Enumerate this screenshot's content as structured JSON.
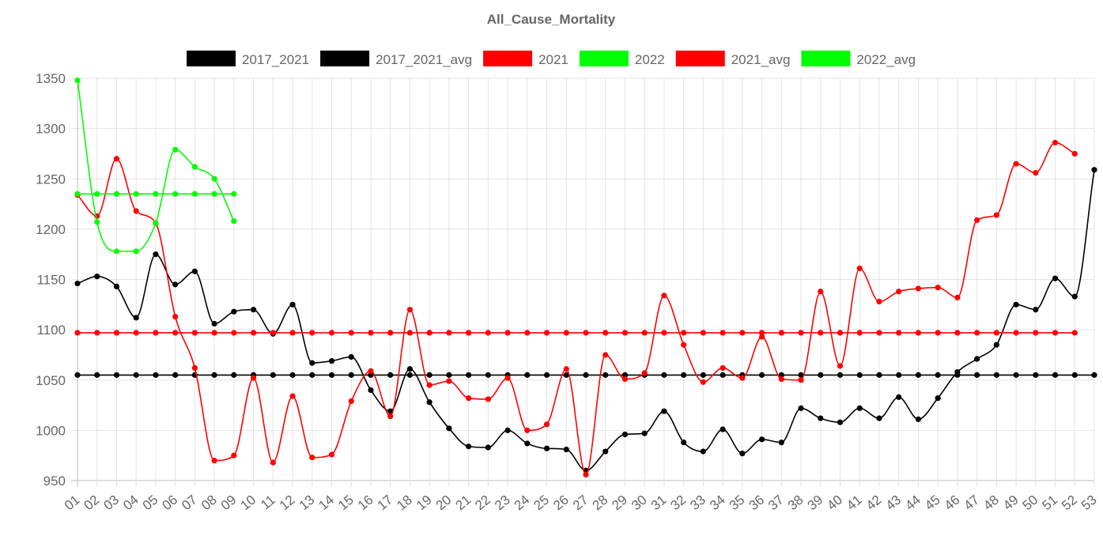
{
  "chart_data": {
    "type": "line",
    "title": "All_Cause_Mortality",
    "xlabel": "",
    "ylabel": "",
    "ylim": [
      950,
      1350
    ],
    "yticks": [
      950,
      1000,
      1050,
      1100,
      1150,
      1200,
      1250,
      1300,
      1350
    ],
    "categories": [
      "01",
      "02",
      "03",
      "04",
      "05",
      "06",
      "07",
      "08",
      "09",
      "10",
      "11",
      "12",
      "13",
      "14",
      "15",
      "16",
      "17",
      "18",
      "19",
      "20",
      "21",
      "22",
      "23",
      "24",
      "25",
      "26",
      "27",
      "28",
      "29",
      "30",
      "31",
      "32",
      "33",
      "34",
      "35",
      "36",
      "37",
      "38",
      "39",
      "40",
      "41",
      "42",
      "43",
      "44",
      "45",
      "46",
      "47",
      "48",
      "49",
      "50",
      "51",
      "52",
      "53"
    ],
    "grid": true,
    "legend_position": "top",
    "series": [
      {
        "name": "2017_2021",
        "color": "#000000",
        "values": [
          1146,
          1153,
          1143,
          1112,
          1175,
          1145,
          1158,
          1106,
          1118,
          1120,
          1096,
          1125,
          1067,
          1069,
          1073,
          1040,
          1019,
          1061,
          1028,
          1002,
          984,
          983,
          1000,
          987,
          982,
          981,
          960,
          979,
          996,
          997,
          1019,
          988,
          979,
          1001,
          977,
          991,
          988,
          1022,
          1012,
          1008,
          1022,
          1012,
          1033,
          1011,
          1032,
          1058,
          1071,
          1085,
          1125,
          1120,
          1151,
          1133,
          1259
        ]
      },
      {
        "name": "2017_2021_avg",
        "color": "#000000",
        "values": [
          1055,
          1055,
          1055,
          1055,
          1055,
          1055,
          1055,
          1055,
          1055,
          1055,
          1055,
          1055,
          1055,
          1055,
          1055,
          1055,
          1055,
          1055,
          1055,
          1055,
          1055,
          1055,
          1055,
          1055,
          1055,
          1055,
          1055,
          1055,
          1055,
          1055,
          1055,
          1055,
          1055,
          1055,
          1055,
          1055,
          1055,
          1055,
          1055,
          1055,
          1055,
          1055,
          1055,
          1055,
          1055,
          1055,
          1055,
          1055,
          1055,
          1055,
          1055,
          1055,
          1055
        ]
      },
      {
        "name": "2021",
        "color": "#ff0000",
        "values": [
          1234,
          1213,
          1270,
          1218,
          1206,
          1113,
          1062,
          970,
          975,
          1052,
          968,
          1034,
          973,
          976,
          1029,
          1059,
          1014,
          1120,
          1045,
          1049,
          1032,
          1031,
          1052,
          1000,
          1006,
          1061,
          956,
          1075,
          1051,
          1057,
          1134,
          1085,
          1048,
          1062,
          1052,
          1093,
          1051,
          1050,
          1138,
          1064,
          1161,
          1128,
          1138,
          1141,
          1142,
          1132,
          1209,
          1214,
          1265,
          1256,
          1286,
          1275,
          null
        ]
      },
      {
        "name": "2022",
        "color": "#00ff00",
        "values": [
          1348,
          1207,
          1178,
          1178,
          1206,
          1279,
          1262,
          1250,
          1208,
          null,
          null,
          null,
          null,
          null,
          null,
          null,
          null,
          null,
          null,
          null,
          null,
          null,
          null,
          null,
          null,
          null,
          null,
          null,
          null,
          null,
          null,
          null,
          null,
          null,
          null,
          null,
          null,
          null,
          null,
          null,
          null,
          null,
          null,
          null,
          null,
          null,
          null,
          null,
          null,
          null,
          null,
          null,
          null
        ]
      },
      {
        "name": "2021_avg",
        "color": "#ff0000",
        "values": [
          1097,
          1097,
          1097,
          1097,
          1097,
          1097,
          1097,
          1097,
          1097,
          1097,
          1097,
          1097,
          1097,
          1097,
          1097,
          1097,
          1097,
          1097,
          1097,
          1097,
          1097,
          1097,
          1097,
          1097,
          1097,
          1097,
          1097,
          1097,
          1097,
          1097,
          1097,
          1097,
          1097,
          1097,
          1097,
          1097,
          1097,
          1097,
          1097,
          1097,
          1097,
          1097,
          1097,
          1097,
          1097,
          1097,
          1097,
          1097,
          1097,
          1097,
          1097,
          1097,
          null
        ]
      },
      {
        "name": "2022_avg",
        "color": "#00ff00",
        "values": [
          1235,
          1235,
          1235,
          1235,
          1235,
          1235,
          1235,
          1235,
          1235,
          null,
          null,
          null,
          null,
          null,
          null,
          null,
          null,
          null,
          null,
          null,
          null,
          null,
          null,
          null,
          null,
          null,
          null,
          null,
          null,
          null,
          null,
          null,
          null,
          null,
          null,
          null,
          null,
          null,
          null,
          null,
          null,
          null,
          null,
          null,
          null,
          null,
          null,
          null,
          null,
          null,
          null,
          null,
          null
        ]
      }
    ]
  }
}
